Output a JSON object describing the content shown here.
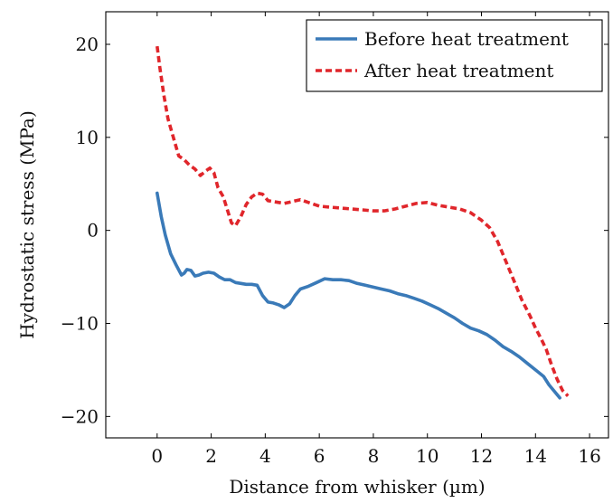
{
  "chart_data": {
    "type": "line",
    "xlabel": "Distance from whisker (µm)",
    "ylabel": "Hydrostatic stress (MPa)",
    "xlim": [
      -1.9,
      16.7
    ],
    "ylim": [
      -22.3,
      23.5
    ],
    "xticks": [
      0,
      2,
      4,
      6,
      8,
      10,
      12,
      14,
      16
    ],
    "yticks": [
      20,
      10,
      0,
      -10,
      -20
    ],
    "ytick_labels": [
      "20",
      "10",
      "0",
      "−10",
      "−20"
    ],
    "grid": false,
    "legend_position": "top-right",
    "series": [
      {
        "name": "Before heat treatment",
        "color": "#3a7ab8",
        "dash": "solid",
        "x": [
          0.0,
          0.15,
          0.3,
          0.5,
          0.7,
          0.9,
          1.0,
          1.1,
          1.25,
          1.4,
          1.55,
          1.7,
          1.9,
          2.1,
          2.3,
          2.5,
          2.7,
          2.9,
          3.1,
          3.3,
          3.5,
          3.7,
          3.9,
          4.1,
          4.3,
          4.5,
          4.7,
          4.9,
          5.1,
          5.3,
          5.6,
          5.9,
          6.2,
          6.5,
          6.8,
          7.1,
          7.4,
          7.7,
          8.0,
          8.3,
          8.6,
          8.9,
          9.2,
          9.5,
          9.8,
          10.1,
          10.4,
          10.7,
          11.0,
          11.3,
          11.6,
          11.9,
          12.2,
          12.5,
          12.8,
          13.1,
          13.4,
          13.7,
          14.0,
          14.3,
          14.5,
          14.7,
          14.9
        ],
        "y": [
          4.0,
          1.5,
          -0.5,
          -2.5,
          -3.7,
          -4.8,
          -4.6,
          -4.2,
          -4.3,
          -4.9,
          -4.8,
          -4.6,
          -4.5,
          -4.6,
          -5.0,
          -5.3,
          -5.3,
          -5.6,
          -5.7,
          -5.8,
          -5.8,
          -5.9,
          -7.0,
          -7.7,
          -7.8,
          -8.0,
          -8.3,
          -7.9,
          -7.0,
          -6.3,
          -6.0,
          -5.6,
          -5.2,
          -5.3,
          -5.3,
          -5.4,
          -5.7,
          -5.9,
          -6.1,
          -6.3,
          -6.5,
          -6.8,
          -7.0,
          -7.3,
          -7.6,
          -8.0,
          -8.4,
          -8.9,
          -9.4,
          -10.0,
          -10.5,
          -10.8,
          -11.2,
          -11.8,
          -12.5,
          -13.0,
          -13.6,
          -14.3,
          -15.0,
          -15.7,
          -16.6,
          -17.3,
          -18.0
        ]
      },
      {
        "name": "After heat treatment",
        "color": "#e0262b",
        "dash": "dashed",
        "x": [
          0.0,
          0.1,
          0.25,
          0.4,
          0.6,
          0.8,
          1.0,
          1.2,
          1.4,
          1.6,
          1.8,
          1.95,
          2.1,
          2.25,
          2.45,
          2.6,
          2.75,
          2.9,
          3.1,
          3.3,
          3.5,
          3.7,
          3.9,
          4.1,
          4.3,
          4.5,
          4.7,
          5.0,
          5.3,
          5.6,
          6.0,
          6.4,
          6.8,
          7.2,
          7.6,
          8.0,
          8.4,
          8.8,
          9.2,
          9.6,
          10.0,
          10.4,
          10.8,
          11.2,
          11.6,
          12.0,
          12.3,
          12.6,
          12.9,
          13.2,
          13.5,
          13.8,
          14.0,
          14.2,
          14.4,
          14.6,
          14.8,
          15.0,
          15.2
        ],
        "y": [
          19.8,
          17.5,
          14.5,
          12.0,
          10.0,
          8.0,
          7.6,
          7.0,
          6.6,
          5.9,
          6.4,
          6.7,
          6.2,
          4.6,
          3.6,
          2.2,
          0.8,
          0.5,
          1.5,
          2.8,
          3.6,
          4.0,
          3.9,
          3.2,
          3.1,
          3.0,
          2.9,
          3.1,
          3.3,
          3.0,
          2.6,
          2.5,
          2.4,
          2.3,
          2.2,
          2.1,
          2.1,
          2.3,
          2.6,
          2.9,
          3.0,
          2.7,
          2.5,
          2.3,
          1.9,
          1.1,
          0.3,
          -1.2,
          -3.3,
          -5.4,
          -7.5,
          -9.2,
          -10.5,
          -11.6,
          -12.8,
          -14.5,
          -16.0,
          -17.2,
          -17.8
        ]
      }
    ]
  }
}
